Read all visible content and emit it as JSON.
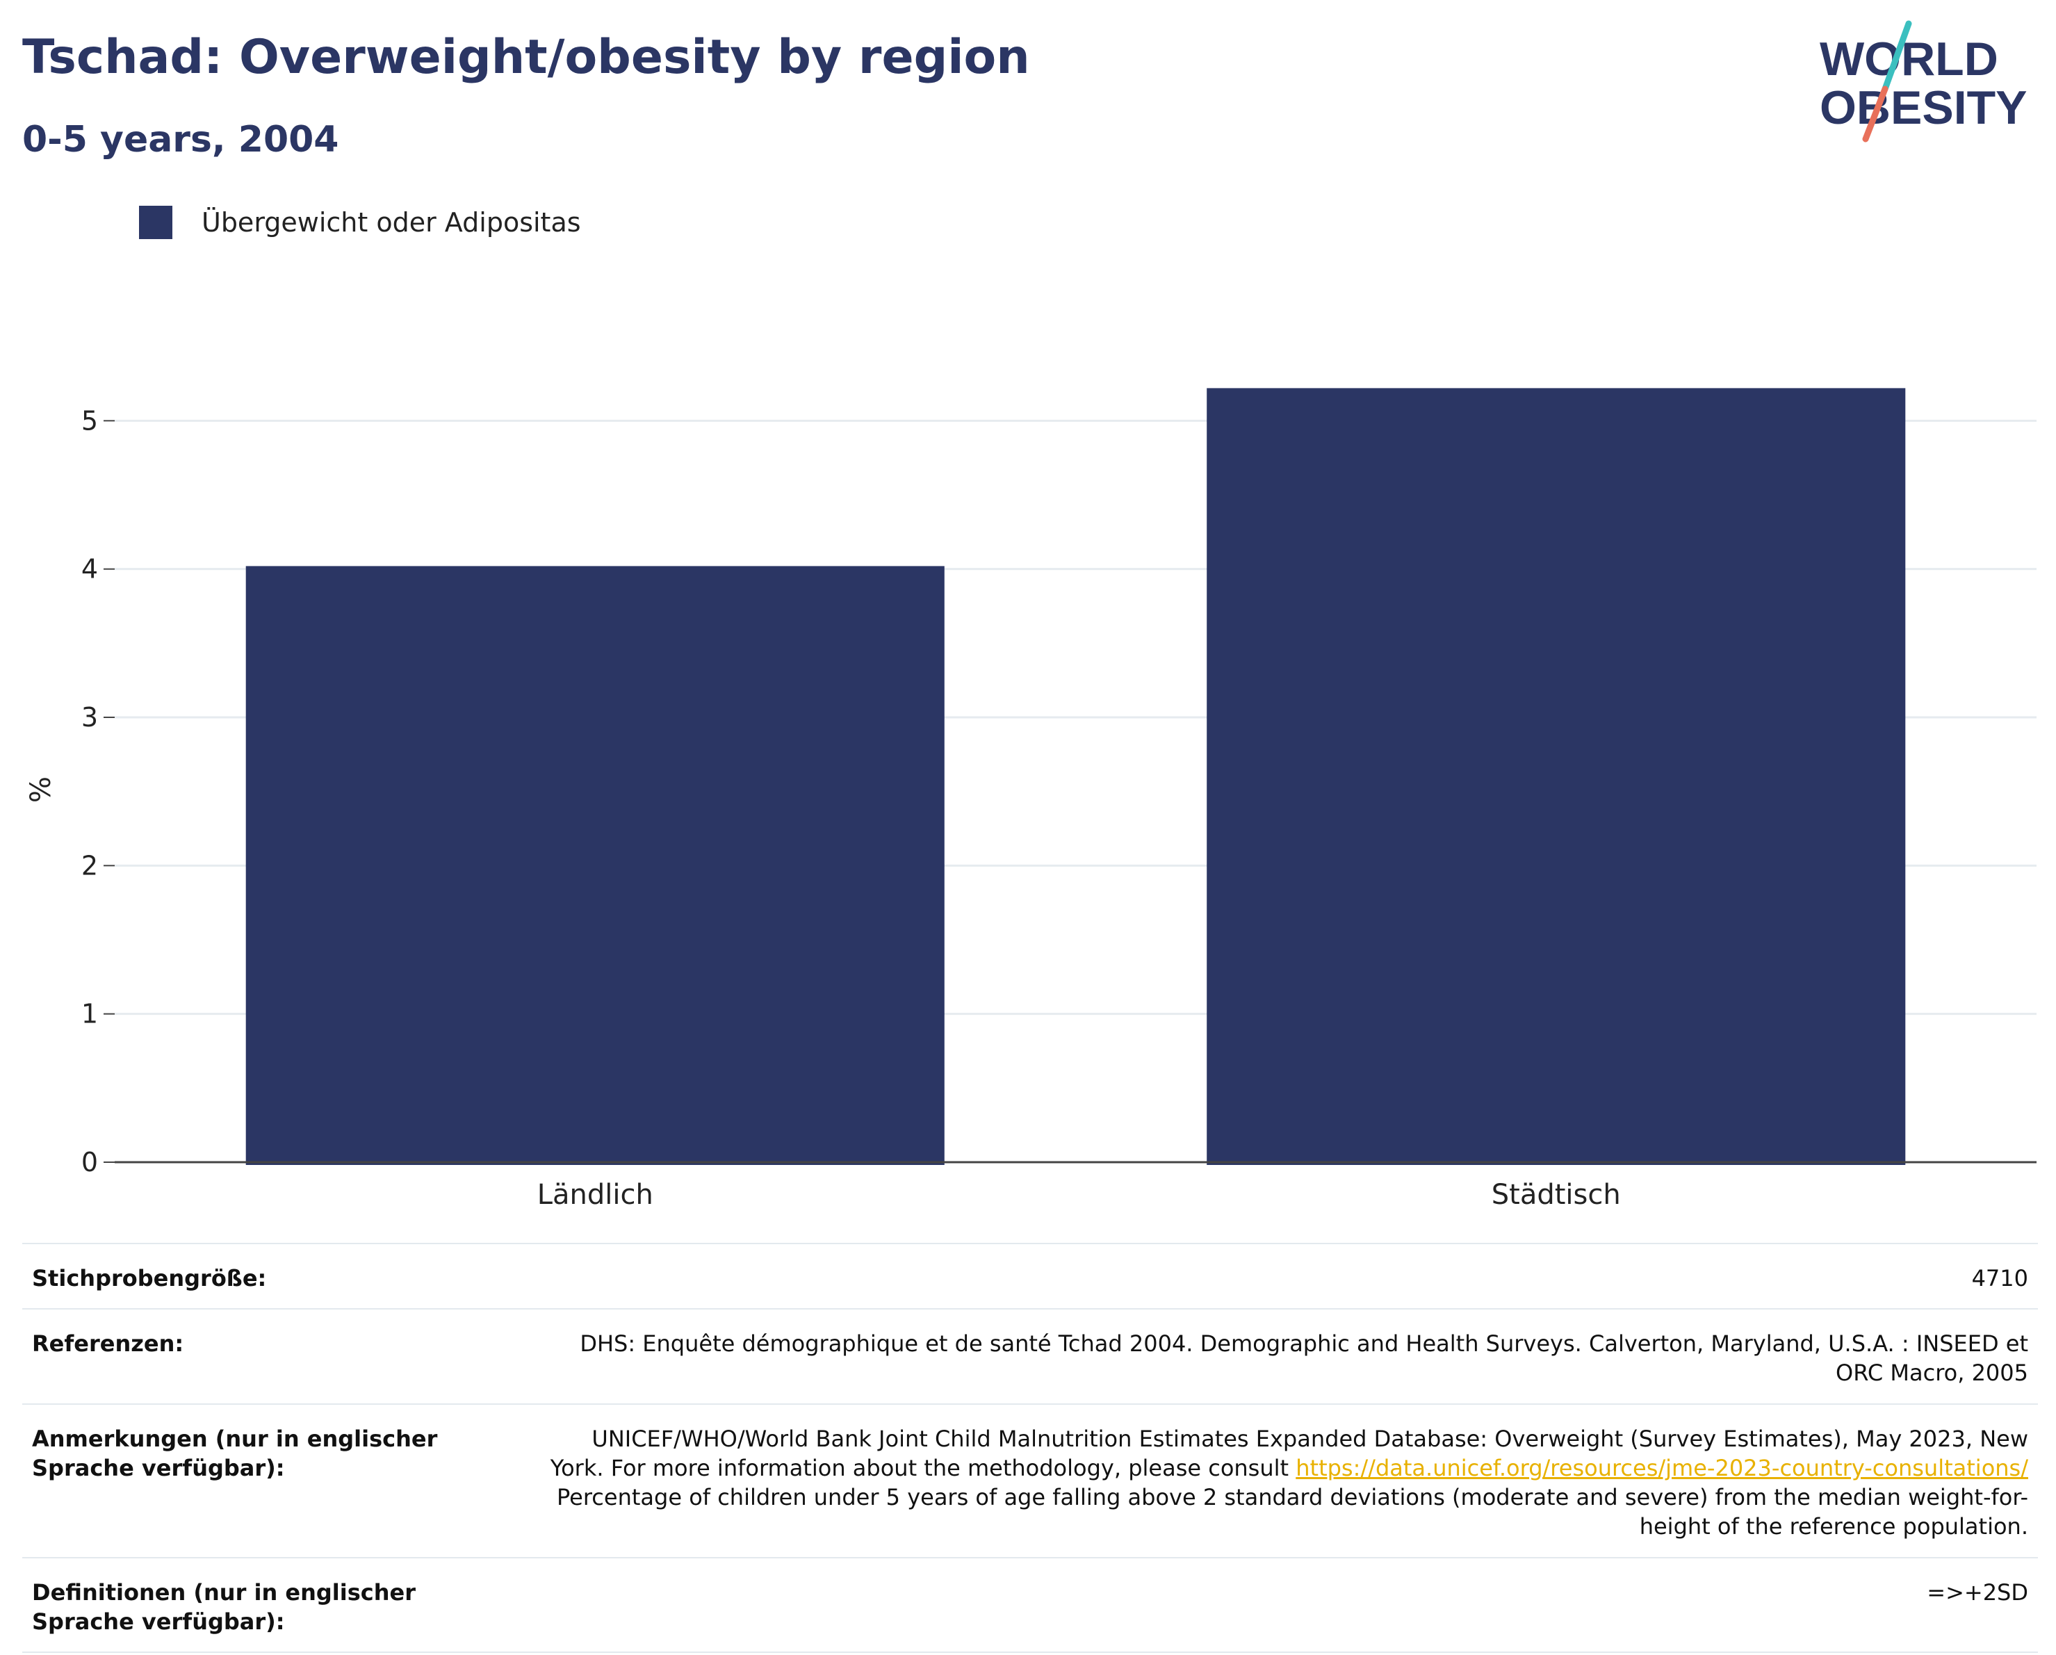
{
  "header": {
    "title": "Tschad: Overweight/obesity by region",
    "subtitle": "0-5 years, 2004"
  },
  "logo": {
    "line1": "WORLD",
    "line2": "OBESITY",
    "colors": {
      "text": "#2b3664",
      "slash_top": "#3bbfbf",
      "slash_bottom": "#e8705a"
    }
  },
  "legend": {
    "label": "Übergewicht oder Adipositas",
    "color": "#2b3664"
  },
  "chart_data": {
    "type": "bar",
    "categories": [
      "Ländlich",
      "Städtisch"
    ],
    "series": [
      {
        "name": "Übergewicht oder Adipositas",
        "values": [
          4.02,
          5.22
        ],
        "color": "#2b3664"
      }
    ],
    "xlabel": "",
    "ylabel": "%",
    "ylim": [
      0,
      5.4
    ],
    "yticks": [
      0,
      1,
      2,
      3,
      4,
      5
    ],
    "grid": true,
    "legend_position": "top-left"
  },
  "meta": {
    "rows": [
      {
        "key": "Stichprobengröße:",
        "value": "4710"
      },
      {
        "key": "Referenzen:",
        "value": "DHS: Enquête démographique et de santé Tchad 2004. Demographic and Health Surveys. Calverton, Maryland, U.S.A. : INSEED et ORC Macro, 2005"
      },
      {
        "key": "Anmerkungen (nur in englischer Sprache verfügbar):",
        "value_before": "UNICEF/WHO/World Bank Joint Child Malnutrition Estimates Expanded Database: Overweight (Survey Estimates), May 2023, New York. For more information about the methodology, please consult ",
        "link": "https://data.unicef.org/resources/jme-2023-country-consultations/",
        "value_after": " Percentage of children under 5 years of age falling above 2 standard deviations (moderate and severe) from the median weight-for-height of the reference population."
      },
      {
        "key": "Definitionen (nur in englischer Sprache verfügbar):",
        "value": "=>+2SD"
      }
    ]
  }
}
